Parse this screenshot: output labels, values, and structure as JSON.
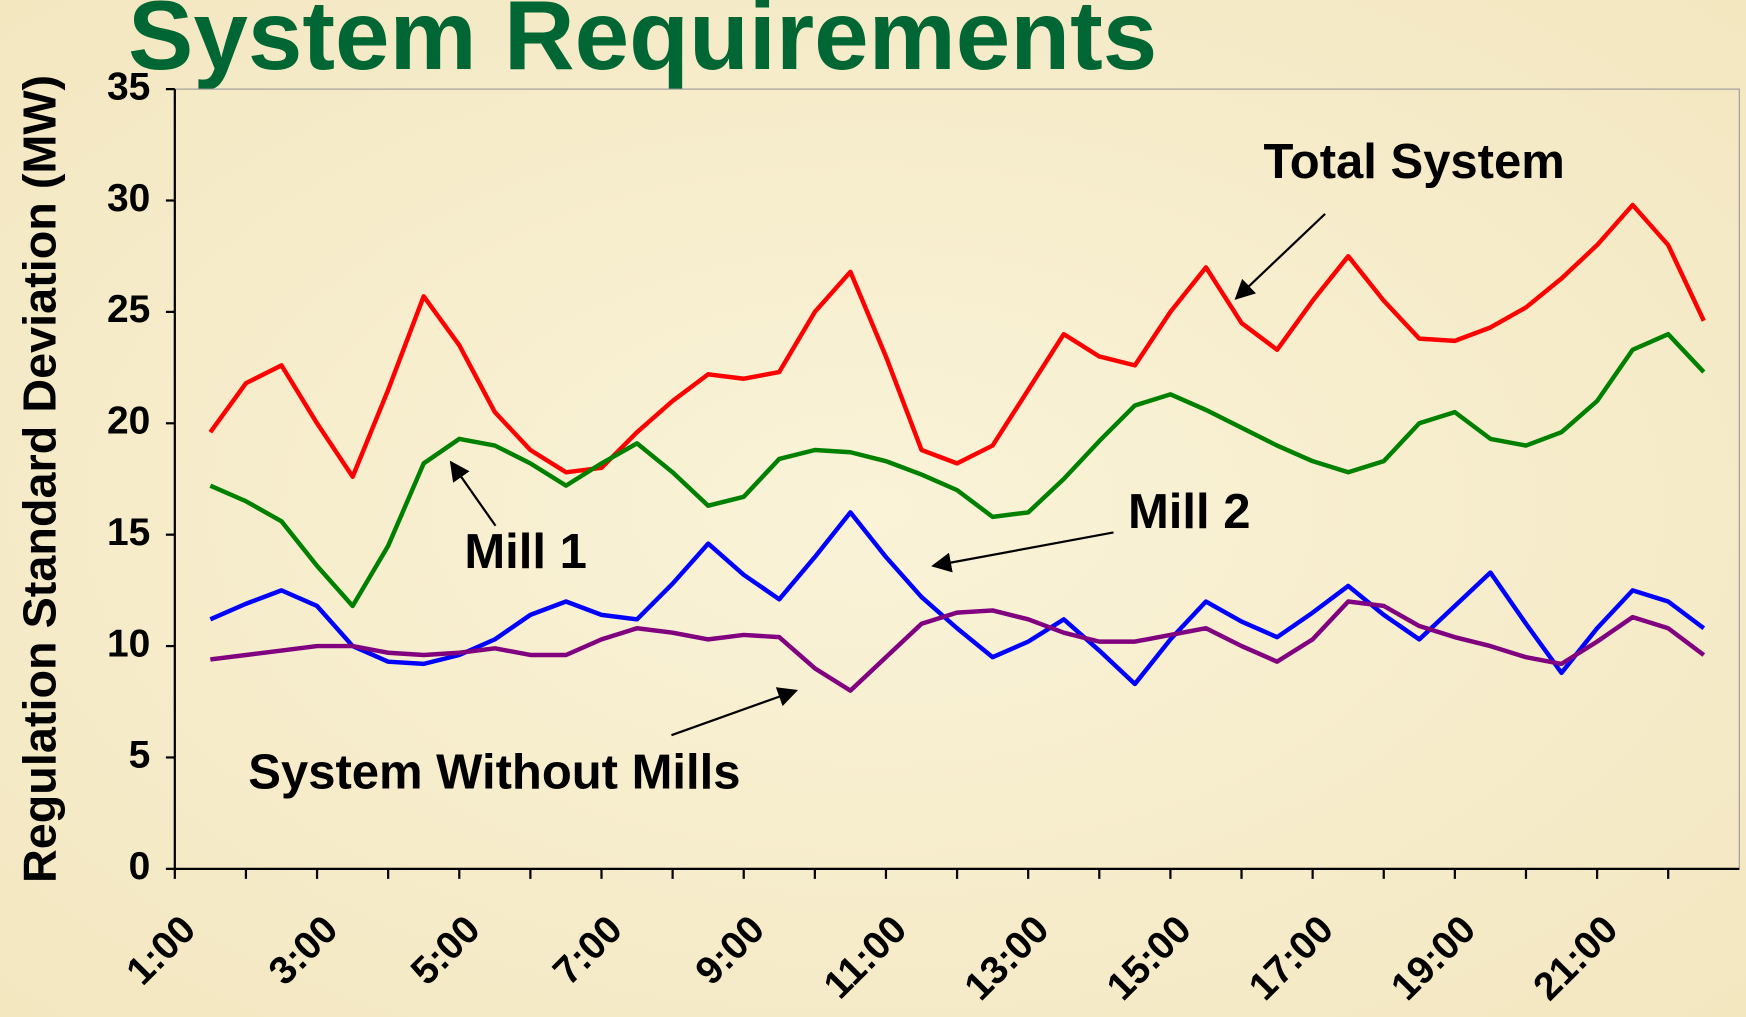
{
  "chart_data": {
    "type": "line",
    "title": "System Requirements",
    "ylabel": "Regulation Standard Deviation (MW)",
    "x": [
      1.5,
      2,
      2.5,
      3,
      3.5,
      4,
      4.5,
      5,
      5.5,
      6,
      6.5,
      7,
      7.5,
      8,
      8.5,
      9,
      9.5,
      10,
      10.5,
      11,
      11.5,
      12,
      12.5,
      13,
      13.5,
      14,
      14.5,
      15,
      15.5,
      16,
      16.5,
      17,
      17.5,
      18,
      18.5,
      19,
      19.5,
      20,
      20.5,
      21,
      21.5,
      22,
      22.5
    ],
    "series": [
      {
        "name": "Total System",
        "color": "#ff0000",
        "values": [
          19.6,
          21.8,
          22.6,
          20.0,
          17.6,
          21.5,
          25.7,
          23.5,
          20.5,
          18.8,
          17.8,
          18.0,
          19.6,
          21.0,
          22.2,
          22.0,
          22.3,
          25.0,
          26.8,
          23.0,
          18.8,
          18.2,
          19.0,
          21.5,
          24.0,
          23.0,
          22.6,
          25.0,
          27.0,
          24.5,
          23.3,
          25.5,
          27.5,
          25.5,
          23.8,
          23.7,
          24.3,
          25.2,
          26.5,
          28.0,
          29.8,
          28.0,
          24.6
        ]
      },
      {
        "name": "Mill 1",
        "color": "#008000",
        "values": [
          17.2,
          16.5,
          15.6,
          13.6,
          11.8,
          14.5,
          18.2,
          19.3,
          19.0,
          18.2,
          17.2,
          18.2,
          19.1,
          17.8,
          16.3,
          16.7,
          18.4,
          18.8,
          18.7,
          18.3,
          17.7,
          17.0,
          15.8,
          16.0,
          17.5,
          19.2,
          20.8,
          21.3,
          20.6,
          19.8,
          19.0,
          18.3,
          17.8,
          18.3,
          20.0,
          20.5,
          19.3,
          19.0,
          19.6,
          21.0,
          23.3,
          24.0,
          22.3
        ]
      },
      {
        "name": "Mill 2",
        "color": "#0000ff",
        "values": [
          11.2,
          11.9,
          12.5,
          11.8,
          10.0,
          9.3,
          9.2,
          9.6,
          10.3,
          11.4,
          12.0,
          11.4,
          11.2,
          12.8,
          14.6,
          13.2,
          12.1,
          14.0,
          16.0,
          14.0,
          12.2,
          10.8,
          9.5,
          10.2,
          11.2,
          9.8,
          8.3,
          10.3,
          12.0,
          11.1,
          10.4,
          11.5,
          12.7,
          11.4,
          10.3,
          11.8,
          13.3,
          11.0,
          8.8,
          10.8,
          12.5,
          12.0,
          10.8
        ]
      },
      {
        "name": "System Without Mills",
        "color": "#800080",
        "values": [
          9.4,
          9.6,
          9.8,
          10.0,
          10.0,
          9.7,
          9.6,
          9.7,
          9.9,
          9.6,
          9.6,
          10.3,
          10.8,
          10.6,
          10.3,
          10.5,
          10.4,
          9.0,
          8.0,
          9.5,
          11.0,
          11.5,
          11.6,
          11.2,
          10.6,
          10.2,
          10.2,
          10.5,
          10.8,
          10.0,
          9.3,
          10.3,
          12.0,
          11.8,
          10.9,
          10.4,
          10.0,
          9.5,
          9.2,
          10.2,
          11.3,
          10.8,
          9.6
        ]
      }
    ],
    "xlim": [
      1,
      23
    ],
    "xticks": [
      {
        "value": 1,
        "label": "1:00"
      },
      {
        "value": 3,
        "label": "3:00"
      },
      {
        "value": 5,
        "label": "5:00"
      },
      {
        "value": 7,
        "label": "7:00"
      },
      {
        "value": 9,
        "label": "9:00"
      },
      {
        "value": 11,
        "label": "11:00"
      },
      {
        "value": 13,
        "label": "13:00"
      },
      {
        "value": 15,
        "label": "15:00"
      },
      {
        "value": 17,
        "label": "17:00"
      },
      {
        "value": 19,
        "label": "19:00"
      },
      {
        "value": 21,
        "label": "21:00"
      }
    ],
    "xminorticks": [
      2,
      4,
      6,
      8,
      10,
      12,
      14,
      16,
      18,
      20,
      22
    ],
    "ylim": [
      0,
      35
    ],
    "yticks": [
      0,
      5,
      10,
      15,
      20,
      25,
      30,
      35
    ],
    "grid": false
  }
}
